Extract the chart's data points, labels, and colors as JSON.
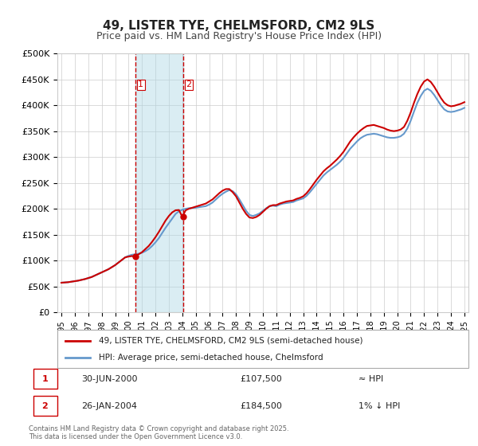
{
  "title": "49, LISTER TYE, CHELMSFORD, CM2 9LS",
  "subtitle": "Price paid vs. HM Land Registry's House Price Index (HPI)",
  "legend_line1": "49, LISTER TYE, CHELMSFORD, CM2 9LS (semi-detached house)",
  "legend_line2": "HPI: Average price, semi-detached house, Chelmsford",
  "transaction1_label": "1",
  "transaction1_date": "30-JUN-2000",
  "transaction1_price": "£107,500",
  "transaction1_hpi": "≈ HPI",
  "transaction2_label": "2",
  "transaction2_date": "26-JAN-2004",
  "transaction2_price": "£184,500",
  "transaction2_hpi": "1% ↓ HPI",
  "footer": "Contains HM Land Registry data © Crown copyright and database right 2025.\nThis data is licensed under the Open Government Licence v3.0.",
  "line_color_red": "#cc0000",
  "line_color_blue": "#6699cc",
  "vline1_color": "#cc0000",
  "vline2_color": "#cc0000",
  "vregion_color": "#add8e6",
  "xlabel_color": "#333333",
  "grid_color": "#cccccc",
  "background_color": "#ffffff",
  "ylim": [
    0,
    500000
  ],
  "yticks": [
    0,
    50000,
    100000,
    150000,
    200000,
    250000,
    300000,
    350000,
    400000,
    450000,
    500000
  ],
  "ytick_labels": [
    "£0",
    "£50K",
    "£100K",
    "£150K",
    "£200K",
    "£250K",
    "£300K",
    "£350K",
    "£400K",
    "£450K",
    "£500K"
  ],
  "xtick_years": [
    1995,
    1996,
    1997,
    1998,
    1999,
    2000,
    2001,
    2002,
    2003,
    2004,
    2005,
    2006,
    2007,
    2008,
    2009,
    2010,
    2011,
    2012,
    2013,
    2014,
    2015,
    2016,
    2017,
    2018,
    2019,
    2020,
    2021,
    2022,
    2023,
    2024,
    2025
  ],
  "vline1_x": 2000.5,
  "vline2_x": 2004.07,
  "vregion_x1": 2000.5,
  "vregion_x2": 2004.07,
  "marker1_x": 2000.5,
  "marker1_y": 107500,
  "marker2_x": 2004.07,
  "marker2_y": 184500,
  "hpi_data_x": [
    1995.0,
    1995.25,
    1995.5,
    1995.75,
    1996.0,
    1996.25,
    1996.5,
    1996.75,
    1997.0,
    1997.25,
    1997.5,
    1997.75,
    1998.0,
    1998.25,
    1998.5,
    1998.75,
    1999.0,
    1999.25,
    1999.5,
    1999.75,
    2000.0,
    2000.25,
    2000.5,
    2000.75,
    2001.0,
    2001.25,
    2001.5,
    2001.75,
    2002.0,
    2002.25,
    2002.5,
    2002.75,
    2003.0,
    2003.25,
    2003.5,
    2003.75,
    2004.0,
    2004.25,
    2004.5,
    2004.75,
    2005.0,
    2005.25,
    2005.5,
    2005.75,
    2006.0,
    2006.25,
    2006.5,
    2006.75,
    2007.0,
    2007.25,
    2007.5,
    2007.75,
    2008.0,
    2008.25,
    2008.5,
    2008.75,
    2009.0,
    2009.25,
    2009.5,
    2009.75,
    2010.0,
    2010.25,
    2010.5,
    2010.75,
    2011.0,
    2011.25,
    2011.5,
    2011.75,
    2012.0,
    2012.25,
    2012.5,
    2012.75,
    2013.0,
    2013.25,
    2013.5,
    2013.75,
    2014.0,
    2014.25,
    2014.5,
    2014.75,
    2015.0,
    2015.25,
    2015.5,
    2015.75,
    2016.0,
    2016.25,
    2016.5,
    2016.75,
    2017.0,
    2017.25,
    2017.5,
    2017.75,
    2018.0,
    2018.25,
    2018.5,
    2018.75,
    2019.0,
    2019.25,
    2019.5,
    2019.75,
    2020.0,
    2020.25,
    2020.5,
    2020.75,
    2021.0,
    2021.25,
    2021.5,
    2021.75,
    2022.0,
    2022.25,
    2022.5,
    2022.75,
    2023.0,
    2023.25,
    2023.5,
    2023.75,
    2024.0,
    2024.25,
    2024.5,
    2024.75,
    2025.0
  ],
  "hpi_data_y": [
    57000,
    57500,
    58000,
    59000,
    60000,
    61000,
    62500,
    64000,
    66000,
    68000,
    71000,
    74000,
    77000,
    80000,
    83000,
    87000,
    91000,
    96000,
    101000,
    106000,
    109000,
    111000,
    112000,
    113000,
    115000,
    118000,
    122000,
    128000,
    135000,
    143000,
    153000,
    163000,
    172000,
    181000,
    190000,
    195000,
    198000,
    200000,
    201000,
    201500,
    202000,
    203000,
    204000,
    205000,
    208000,
    212000,
    218000,
    224000,
    229000,
    233000,
    236000,
    234000,
    228000,
    218000,
    207000,
    196000,
    188000,
    186000,
    188000,
    191000,
    196000,
    201000,
    205000,
    206000,
    205000,
    208000,
    210000,
    211000,
    212000,
    213000,
    216000,
    218000,
    220000,
    225000,
    232000,
    240000,
    248000,
    256000,
    264000,
    270000,
    275000,
    280000,
    285000,
    291000,
    298000,
    307000,
    316000,
    323000,
    330000,
    336000,
    340000,
    343000,
    344000,
    345000,
    344000,
    342000,
    340000,
    338000,
    337000,
    337000,
    338000,
    340000,
    345000,
    355000,
    370000,
    388000,
    405000,
    418000,
    428000,
    432000,
    428000,
    420000,
    410000,
    400000,
    392000,
    388000,
    387000,
    388000,
    390000,
    392000,
    395000
  ],
  "price_data_x": [
    1995.0,
    1995.25,
    1995.5,
    1995.75,
    1996.0,
    1996.25,
    1996.5,
    1996.75,
    1997.0,
    1997.25,
    1997.5,
    1997.75,
    1998.0,
    1998.25,
    1998.5,
    1998.75,
    1999.0,
    1999.25,
    1999.5,
    1999.75,
    2000.0,
    2000.25,
    2000.5,
    2000.75,
    2001.0,
    2001.25,
    2001.5,
    2001.75,
    2002.0,
    2002.25,
    2002.5,
    2002.75,
    2003.0,
    2003.25,
    2003.5,
    2003.75,
    2004.0,
    2004.25,
    2004.5,
    2004.75,
    2005.0,
    2005.25,
    2005.5,
    2005.75,
    2006.0,
    2006.25,
    2006.5,
    2006.75,
    2007.0,
    2007.25,
    2007.5,
    2007.75,
    2008.0,
    2008.25,
    2008.5,
    2008.75,
    2009.0,
    2009.25,
    2009.5,
    2009.75,
    2010.0,
    2010.25,
    2010.5,
    2010.75,
    2011.0,
    2011.25,
    2011.5,
    2011.75,
    2012.0,
    2012.25,
    2012.5,
    2012.75,
    2013.0,
    2013.25,
    2013.5,
    2013.75,
    2014.0,
    2014.25,
    2014.5,
    2014.75,
    2015.0,
    2015.25,
    2015.5,
    2015.75,
    2016.0,
    2016.25,
    2016.5,
    2016.75,
    2017.0,
    2017.25,
    2017.5,
    2017.75,
    2018.0,
    2018.25,
    2018.5,
    2018.75,
    2019.0,
    2019.25,
    2019.5,
    2019.75,
    2020.0,
    2020.25,
    2020.5,
    2020.75,
    2021.0,
    2021.25,
    2021.5,
    2021.75,
    2022.0,
    2022.25,
    2022.5,
    2022.75,
    2023.0,
    2023.25,
    2023.5,
    2023.75,
    2024.0,
    2024.25,
    2024.5,
    2024.75,
    2025.0
  ],
  "price_data_y": [
    57000,
    57500,
    58000,
    59000,
    60000,
    61000,
    62500,
    64000,
    66000,
    68000,
    71000,
    74000,
    77000,
    80000,
    83000,
    87000,
    91000,
    96000,
    101000,
    106000,
    107500,
    108500,
    107500,
    112000,
    116000,
    122000,
    128000,
    136000,
    145000,
    155000,
    166000,
    177000,
    186000,
    193000,
    197000,
    197500,
    184500,
    197000,
    200000,
    202000,
    204000,
    206000,
    208000,
    210000,
    214000,
    218000,
    224000,
    230000,
    235000,
    238000,
    238000,
    232000,
    224000,
    212000,
    200000,
    190000,
    183000,
    182000,
    184000,
    188000,
    194000,
    200000,
    205000,
    207000,
    207000,
    210000,
    212000,
    214000,
    215000,
    216000,
    219000,
    221000,
    224000,
    230000,
    238000,
    247000,
    256000,
    264000,
    272000,
    278000,
    283000,
    289000,
    295000,
    302000,
    310000,
    320000,
    330000,
    338000,
    345000,
    351000,
    356000,
    360000,
    361000,
    362000,
    360000,
    358000,
    356000,
    353000,
    351000,
    350000,
    351000,
    353000,
    358000,
    370000,
    386000,
    405000,
    422000,
    436000,
    446000,
    450000,
    445000,
    436000,
    425000,
    414000,
    405000,
    400000,
    398000,
    399000,
    401000,
    403000,
    406000
  ]
}
